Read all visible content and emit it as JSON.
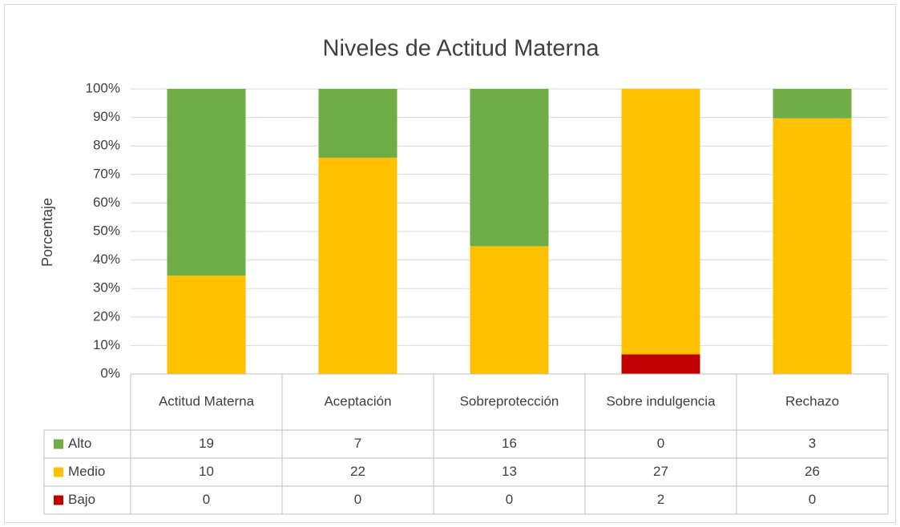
{
  "chart_data": {
    "type": "bar",
    "stacking": "percent",
    "title": "Niveles de Actitud Materna",
    "y_label": "Porcentaje",
    "categories": [
      "Actitud Materna",
      "Aceptación",
      "Sobreprotección",
      "Sobre indulgencia",
      "Rechazo"
    ],
    "series": [
      {
        "name": "Alto",
        "color": "#70ad47",
        "values": [
          19,
          7,
          16,
          0,
          3
        ]
      },
      {
        "name": "Medio",
        "color": "#ffc000",
        "values": [
          10,
          22,
          13,
          27,
          26
        ]
      },
      {
        "name": "Bajo",
        "color": "#c00000",
        "values": [
          0,
          0,
          0,
          2,
          0
        ]
      }
    ],
    "ylim": [
      0,
      100
    ],
    "yticks": [
      {
        "value": 0,
        "label": "0%"
      },
      {
        "value": 10,
        "label": "10%"
      },
      {
        "value": 20,
        "label": "20%"
      },
      {
        "value": 30,
        "label": "30%"
      },
      {
        "value": 40,
        "label": "40%"
      },
      {
        "value": 50,
        "label": "50%"
      },
      {
        "value": 60,
        "label": "60%"
      },
      {
        "value": 70,
        "label": "70%"
      },
      {
        "value": 80,
        "label": "80%"
      },
      {
        "value": 90,
        "label": "90%"
      },
      {
        "value": 100,
        "label": "100%"
      }
    ],
    "grid": true,
    "data_table": true
  }
}
